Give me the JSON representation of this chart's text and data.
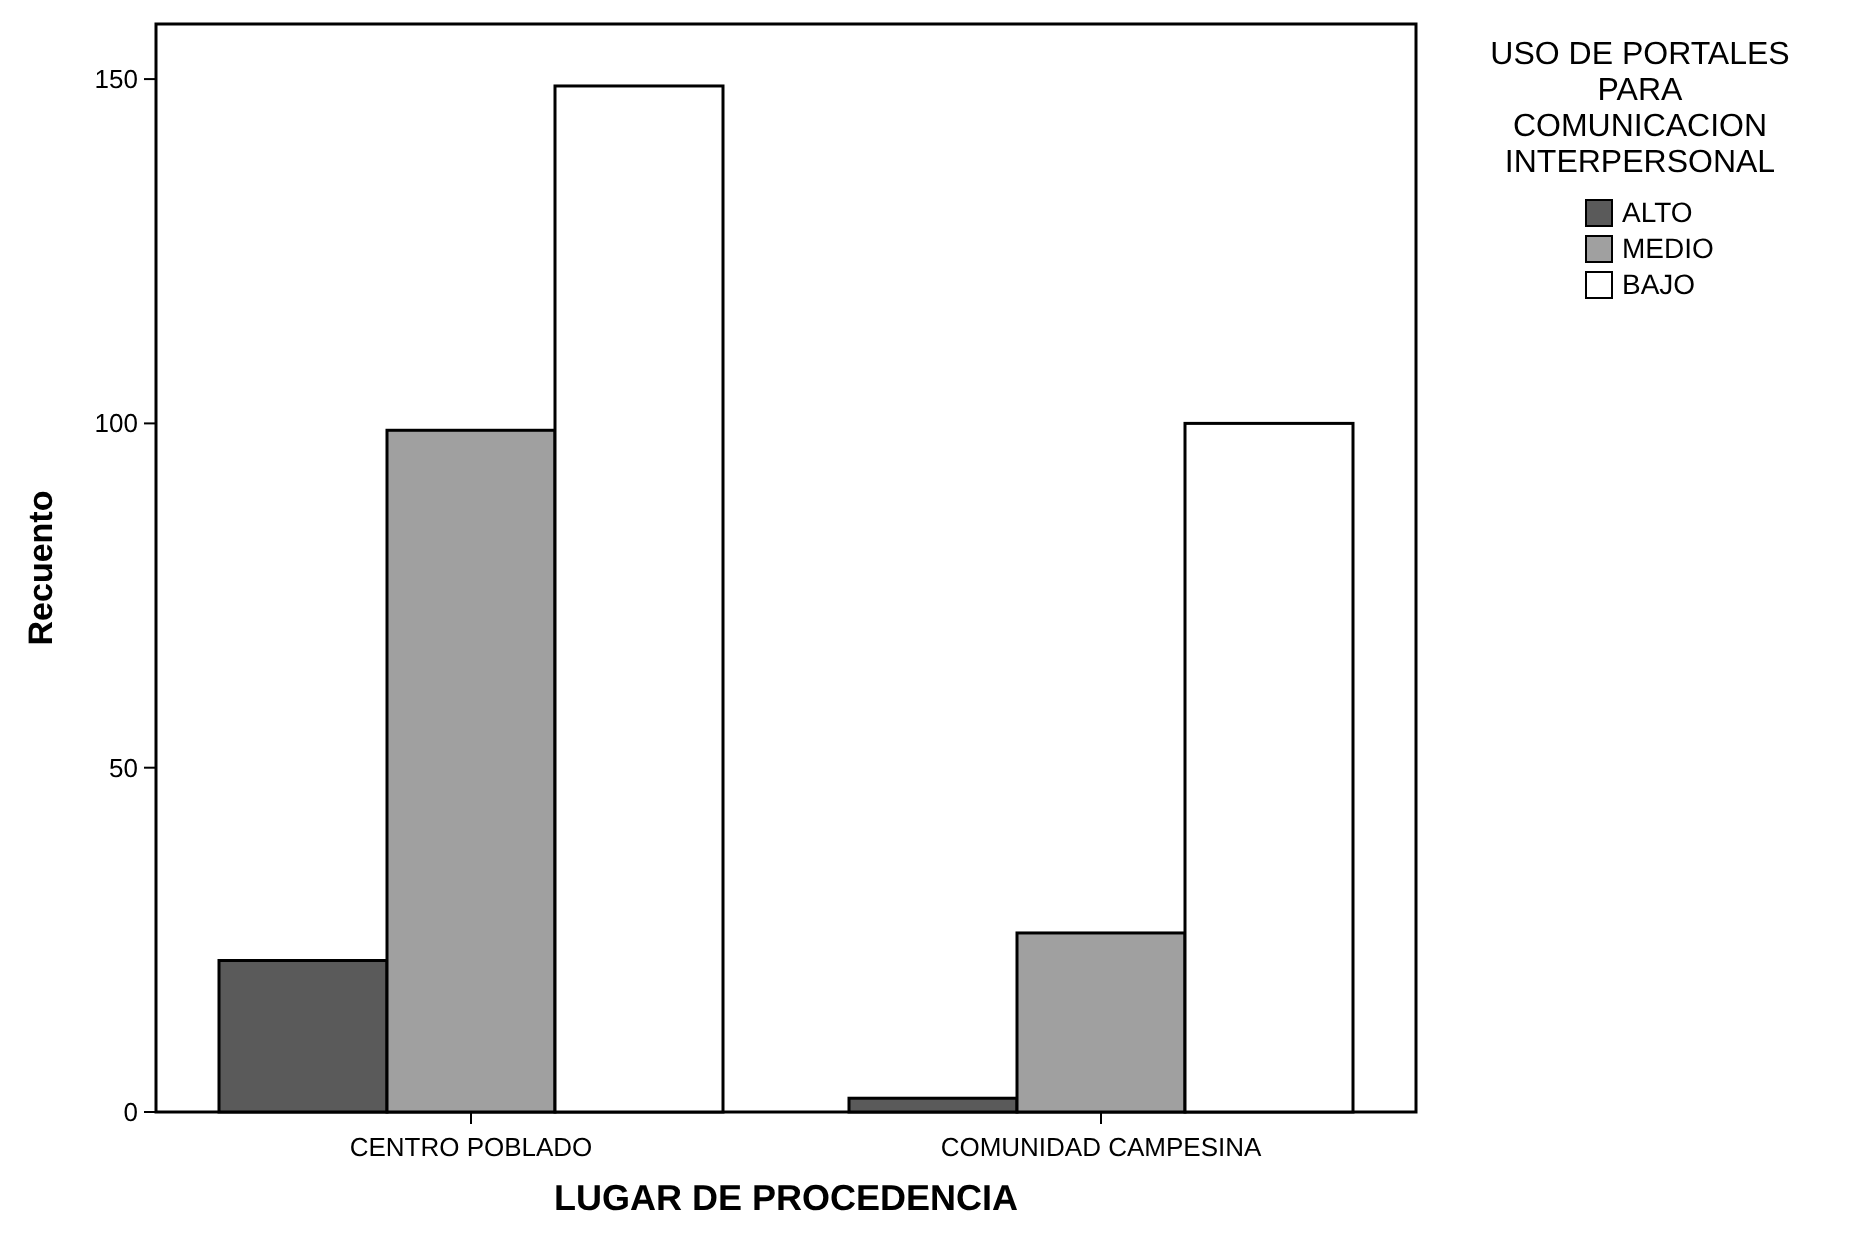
{
  "chart_data": {
    "type": "bar",
    "xlabel": "LUGAR DE PROCEDENCIA",
    "ylabel": "Recuento",
    "legend_title": "USO DE PORTALES PARA COMUNICACION INTERPERSONAL",
    "categories": [
      "CENTRO POBLADO",
      "COMUNIDAD CAMPESINA"
    ],
    "series": [
      {
        "name": "ALTO",
        "color": "#5a5a5a",
        "values": [
          22,
          2
        ]
      },
      {
        "name": "MEDIO",
        "color": "#a0a0a0",
        "values": [
          99,
          26
        ]
      },
      {
        "name": "BAJO",
        "color": "#ffffff",
        "values": [
          149,
          100
        ]
      }
    ],
    "ylim": [
      0,
      158
    ],
    "yticks": [
      0,
      50,
      100,
      150
    ],
    "grid": false,
    "legend": "top right"
  }
}
